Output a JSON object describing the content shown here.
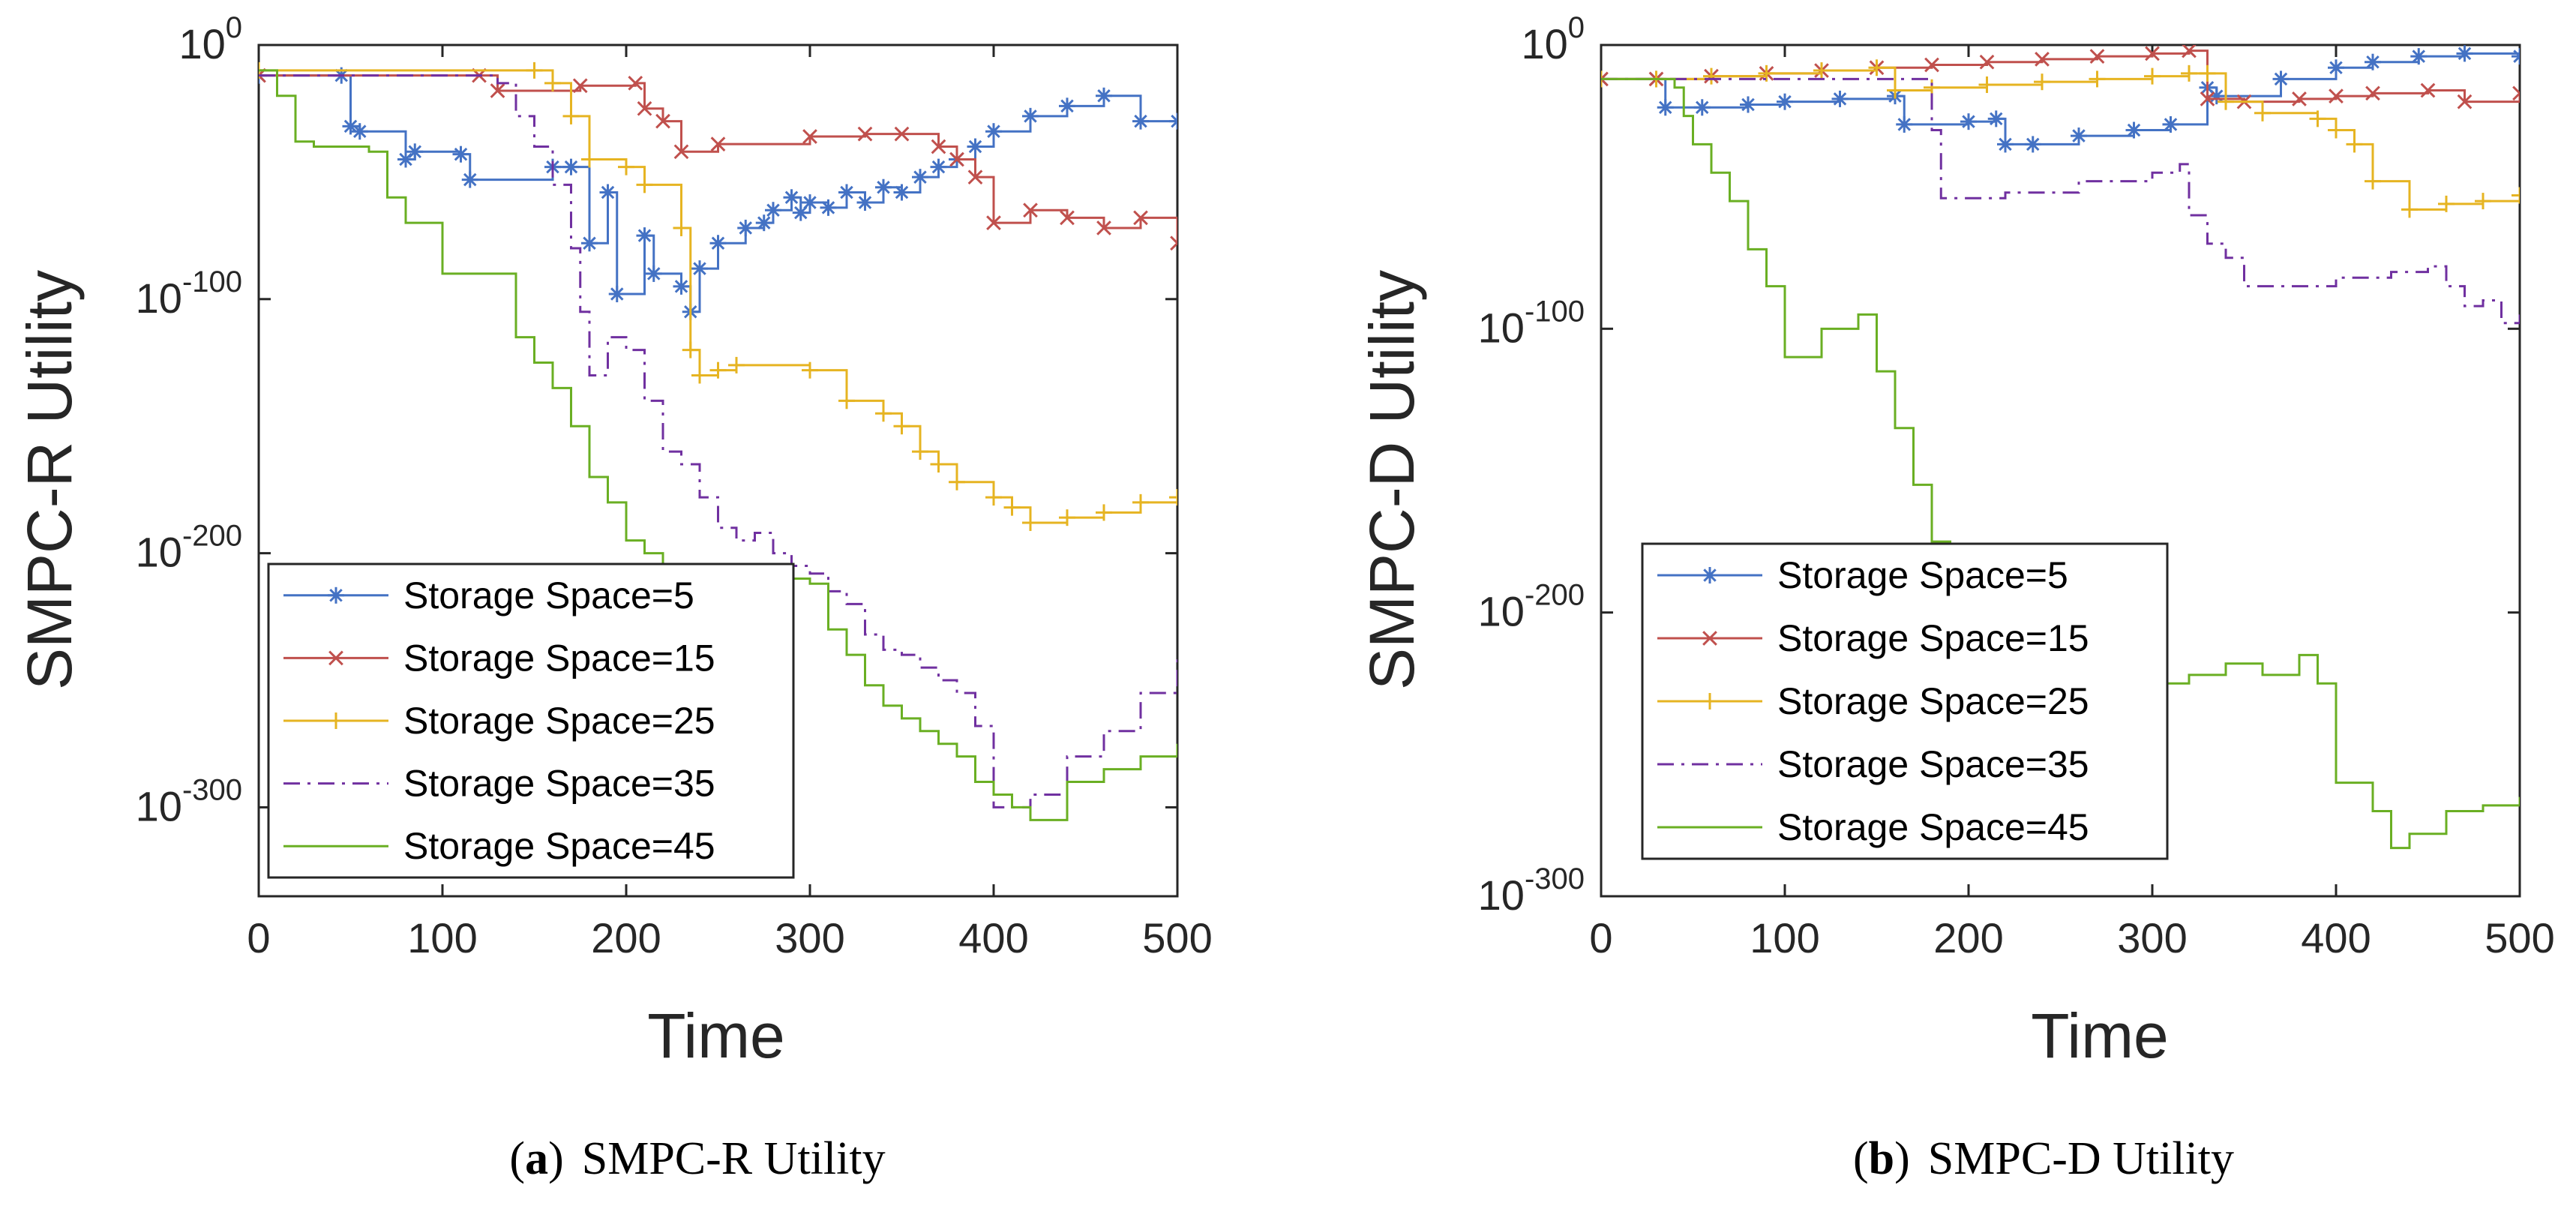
{
  "panels": [
    {
      "caption_letter": "a",
      "caption_text": "SMPC-R Utility",
      "chart_data": {
        "type": "line",
        "ylabel": "SMPC-R Utility",
        "xlabel": "Time",
        "xlim": [
          0,
          500
        ],
        "x_ticks": [
          0,
          100,
          200,
          300,
          400,
          500
        ],
        "ylim_exponent": [
          -335,
          0
        ],
        "y_scale": "log10",
        "y_ticks": [
          0,
          -100,
          -200,
          -300
        ],
        "y_tick_base": "10",
        "legend_position": "bottom-left",
        "series": [
          {
            "name": "Storage Space=5",
            "color": "#4472C4",
            "marker": "star",
            "dash": "solid",
            "x": [
              0,
              45,
              50,
              55,
              80,
              85,
              110,
              115,
              160,
              170,
              180,
              190,
              195,
              210,
              215,
              230,
              235,
              240,
              250,
              265,
              275,
              280,
              290,
              295,
              300,
              310,
              320,
              330,
              340,
              350,
              360,
              370,
              380,
              390,
              400,
              420,
              440,
              460,
              480,
              500
            ],
            "y": [
              -12,
              -12,
              -32,
              -34,
              -45,
              -42,
              -43,
              -53,
              -48,
              -48,
              -78,
              -58,
              -98,
              -75,
              -90,
              -95,
              -105,
              -88,
              -78,
              -72,
              -70,
              -65,
              -60,
              -66,
              -62,
              -64,
              -58,
              -62,
              -56,
              -58,
              -52,
              -48,
              -45,
              -40,
              -34,
              -28,
              -24,
              -20,
              -30,
              -30
            ]
          },
          {
            "name": "Storage Space=15",
            "color": "#C0504D",
            "marker": "x",
            "dash": "solid",
            "x": [
              0,
              120,
              130,
              175,
              205,
              210,
              220,
              230,
              250,
              300,
              330,
              350,
              370,
              380,
              390,
              400,
              420,
              440,
              460,
              480,
              500
            ],
            "y": [
              -12,
              -12,
              -18,
              -16,
              -15,
              -25,
              -30,
              -42,
              -39,
              -36,
              -35,
              -35,
              -40,
              -45,
              -52,
              -70,
              -65,
              -68,
              -72,
              -68,
              -78
            ]
          },
          {
            "name": "Storage Space=25",
            "color": "#E6B422",
            "marker": "plus",
            "dash": "solid",
            "x": [
              0,
              150,
              160,
              170,
              180,
              200,
              210,
              230,
              235,
              240,
              250,
              260,
              300,
              320,
              340,
              350,
              360,
              370,
              380,
              400,
              410,
              420,
              440,
              460,
              480,
              500
            ],
            "y": [
              -10,
              -10,
              -15,
              -28,
              -45,
              -48,
              -55,
              -72,
              -120,
              -130,
              -128,
              -126,
              -128,
              -140,
              -145,
              -150,
              -160,
              -165,
              -172,
              -178,
              -182,
              -188,
              -186,
              -184,
              -180,
              -178
            ]
          },
          {
            "name": "Storage Space=35",
            "color": "#7030A0",
            "marker": "none",
            "dash": "dash-dot",
            "x": [
              0,
              120,
              130,
              140,
              150,
              160,
              170,
              175,
              180,
              190,
              200,
              210,
              220,
              230,
              240,
              250,
              260,
              270,
              280,
              290,
              300,
              310,
              320,
              330,
              340,
              350,
              360,
              370,
              380,
              390,
              400,
              420,
              440,
              460,
              480,
              500
            ],
            "y": [
              -12,
              -12,
              -15,
              -28,
              -40,
              -55,
              -80,
              -105,
              -130,
              -115,
              -120,
              -140,
              -160,
              -165,
              -178,
              -190,
              -195,
              -192,
              -200,
              -205,
              -208,
              -215,
              -220,
              -232,
              -238,
              -240,
              -245,
              -250,
              -255,
              -268,
              -300,
              -295,
              -280,
              -270,
              -255,
              -240
            ]
          },
          {
            "name": "Storage Space=45",
            "color": "#6AAF23",
            "marker": "none",
            "dash": "solid",
            "x": [
              0,
              10,
              20,
              30,
              45,
              60,
              70,
              80,
              100,
              140,
              150,
              160,
              170,
              180,
              190,
              200,
              210,
              220,
              230,
              240,
              250,
              260,
              270,
              280,
              290,
              300,
              310,
              320,
              330,
              340,
              350,
              360,
              370,
              380,
              390,
              400,
              410,
              420,
              440,
              460,
              480,
              500
            ],
            "y": [
              -10,
              -20,
              -38,
              -40,
              -40,
              -42,
              -60,
              -70,
              -90,
              -115,
              -125,
              -135,
              -150,
              -170,
              -180,
              -195,
              -200,
              -210,
              -215,
              -220,
              -225,
              -220,
              -215,
              -210,
              -210,
              -212,
              -230,
              -240,
              -252,
              -260,
              -265,
              -270,
              -275,
              -280,
              -290,
              -295,
              -300,
              -305,
              -290,
              -285,
              -280,
              -275
            ]
          }
        ]
      }
    },
    {
      "caption_letter": "b",
      "caption_text": "SMPC-D Utility",
      "chart_data": {
        "type": "line",
        "ylabel": "SMPC-D Utility",
        "xlabel": "Time",
        "xlim": [
          0,
          500
        ],
        "x_ticks": [
          0,
          100,
          200,
          300,
          400,
          500
        ],
        "ylim_exponent": [
          -300,
          0
        ],
        "y_scale": "log10",
        "y_ticks": [
          0,
          -100,
          -200,
          -300
        ],
        "y_tick_base": "10",
        "legend_position": "bottom-left",
        "series": [
          {
            "name": "Storage Space=5",
            "color": "#4472C4",
            "marker": "star",
            "dash": "solid",
            "x": [
              0,
              30,
              35,
              55,
              80,
              100,
              130,
              160,
              165,
              200,
              215,
              220,
              235,
              260,
              290,
              310,
              330,
              335,
              370,
              400,
              420,
              445,
              470,
              500
            ],
            "y": [
              -12,
              -12,
              -22,
              -22,
              -21,
              -20,
              -19,
              -18,
              -28,
              -27,
              -26,
              -35,
              -35,
              -32,
              -30,
              -28,
              -15,
              -18,
              -12,
              -8,
              -6,
              -4,
              -3,
              -4
            ]
          },
          {
            "name": "Storage Space=15",
            "color": "#C0504D",
            "marker": "x",
            "dash": "solid",
            "x": [
              0,
              30,
              60,
              90,
              120,
              150,
              180,
              210,
              240,
              270,
              300,
              320,
              330,
              350,
              380,
              400,
              420,
              450,
              470,
              500
            ],
            "y": [
              -12,
              -12,
              -11,
              -10,
              -9,
              -8,
              -7,
              -6,
              -5,
              -4,
              -3,
              -2,
              -19,
              -20,
              -19,
              -18,
              -17,
              -16,
              -20,
              -17
            ]
          },
          {
            "name": "Storage Space=25",
            "color": "#E6B422",
            "marker": "plus",
            "dash": "solid",
            "x": [
              0,
              30,
              60,
              90,
              120,
              150,
              160,
              180,
              210,
              240,
              270,
              300,
              320,
              330,
              340,
              360,
              390,
              400,
              410,
              420,
              440,
              460,
              480,
              500
            ],
            "y": [
              -12,
              -12,
              -11,
              -10,
              -9,
              -8,
              -16,
              -15,
              -14,
              -13,
              -12,
              -11,
              -10,
              -10,
              -20,
              -24,
              -26,
              -30,
              -35,
              -48,
              -58,
              -56,
              -55,
              -53
            ]
          },
          {
            "name": "Storage Space=35",
            "color": "#7030A0",
            "marker": "none",
            "dash": "dash-dot",
            "x": [
              0,
              100,
              130,
              160,
              180,
              185,
              220,
              260,
              300,
              315,
              320,
              330,
              340,
              350,
              400,
              430,
              450,
              460,
              470,
              480,
              490,
              500
            ],
            "y": [
              -12,
              -12,
              -12,
              -12,
              -30,
              -54,
              -52,
              -48,
              -45,
              -42,
              -60,
              -70,
              -75,
              -85,
              -82,
              -80,
              -78,
              -85,
              -92,
              -90,
              -98,
              -95
            ]
          },
          {
            "name": "Storage Space=45",
            "color": "#6AAF23",
            "marker": "none",
            "dash": "solid",
            "x": [
              0,
              30,
              40,
              45,
              50,
              60,
              70,
              80,
              90,
              100,
              120,
              140,
              150,
              160,
              170,
              180,
              190,
              200,
              220,
              240,
              260,
              280,
              300,
              320,
              340,
              360,
              380,
              390,
              400,
              420,
              430,
              440,
              460,
              480,
              500
            ],
            "y": [
              -12,
              -12,
              -15,
              -25,
              -35,
              -45,
              -55,
              -72,
              -85,
              -110,
              -100,
              -95,
              -115,
              -135,
              -155,
              -175,
              -198,
              -215,
              -225,
              -230,
              -235,
              -240,
              -225,
              -222,
              -218,
              -222,
              -215,
              -225,
              -260,
              -270,
              -283,
              -278,
              -270,
              -268,
              -265
            ]
          }
        ]
      }
    }
  ]
}
